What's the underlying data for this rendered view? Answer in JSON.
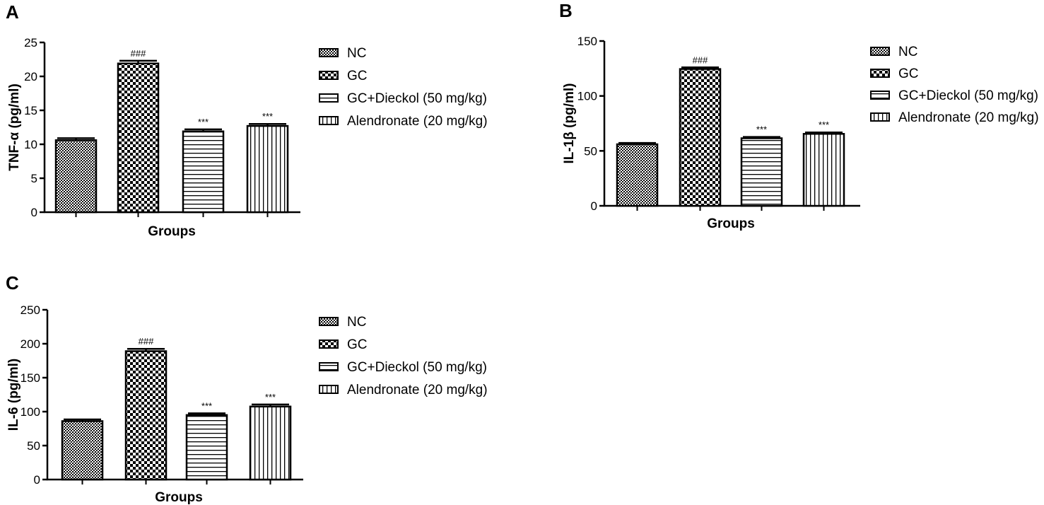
{
  "chart_data": [
    {
      "panel": "A",
      "type": "bar",
      "categories": [
        "NC",
        "GC",
        "GC+Dieckol (50 mg/kg)",
        "Alendronate (20 mg/kg)"
      ],
      "values": [
        10.6,
        21.9,
        11.9,
        12.7
      ],
      "errors": [
        0.3,
        0.4,
        0.3,
        0.3
      ],
      "annotations": [
        "",
        "###",
        "***",
        "***"
      ],
      "yticks": [
        0,
        5,
        10,
        15,
        20,
        25
      ],
      "ylim": [
        0,
        25
      ],
      "xlabel": "Groups",
      "ylabel": "TNF-α (pg/ml)",
      "legend": [
        "NC",
        "GC",
        "GC+Dieckol (50 mg/kg)",
        "Alendronate (20 mg/kg)"
      ]
    },
    {
      "panel": "B",
      "type": "bar",
      "categories": [
        "NC",
        "GC",
        "GC+Dieckol (50 mg/kg)",
        "Alendronate (20 mg/kg)"
      ],
      "values": [
        56,
        124.5,
        61.5,
        65.5
      ],
      "errors": [
        1.2,
        1.5,
        1.2,
        1.3
      ],
      "annotations": [
        "",
        "###",
        "***",
        "***"
      ],
      "yticks": [
        0,
        50,
        100,
        150
      ],
      "ylim": [
        0,
        150
      ],
      "xlabel": "Groups",
      "ylabel": "IL-1β (pg/ml)",
      "legend": [
        "NC",
        "GC",
        "GC+Dieckol (50 mg/kg)",
        "Alendronate (20 mg/kg)"
      ]
    },
    {
      "panel": "C",
      "type": "bar",
      "categories": [
        "NC",
        "GC",
        "GC+Dieckol (50 mg/kg)",
        "Alendronate (20 mg/kg)"
      ],
      "values": [
        86,
        189,
        95,
        107.5
      ],
      "errors": [
        2.5,
        3.5,
        2.5,
        3
      ],
      "annotations": [
        "",
        "###",
        "***",
        "***"
      ],
      "yticks": [
        0,
        50,
        100,
        150,
        200,
        250
      ],
      "ylim": [
        0,
        250
      ],
      "xlabel": "Groups",
      "ylabel": "IL-6 (pg/ml)",
      "legend": [
        "NC",
        "GC",
        "GC+Dieckol (50 mg/kg)",
        "Alendronate (20 mg/kg)"
      ]
    }
  ]
}
